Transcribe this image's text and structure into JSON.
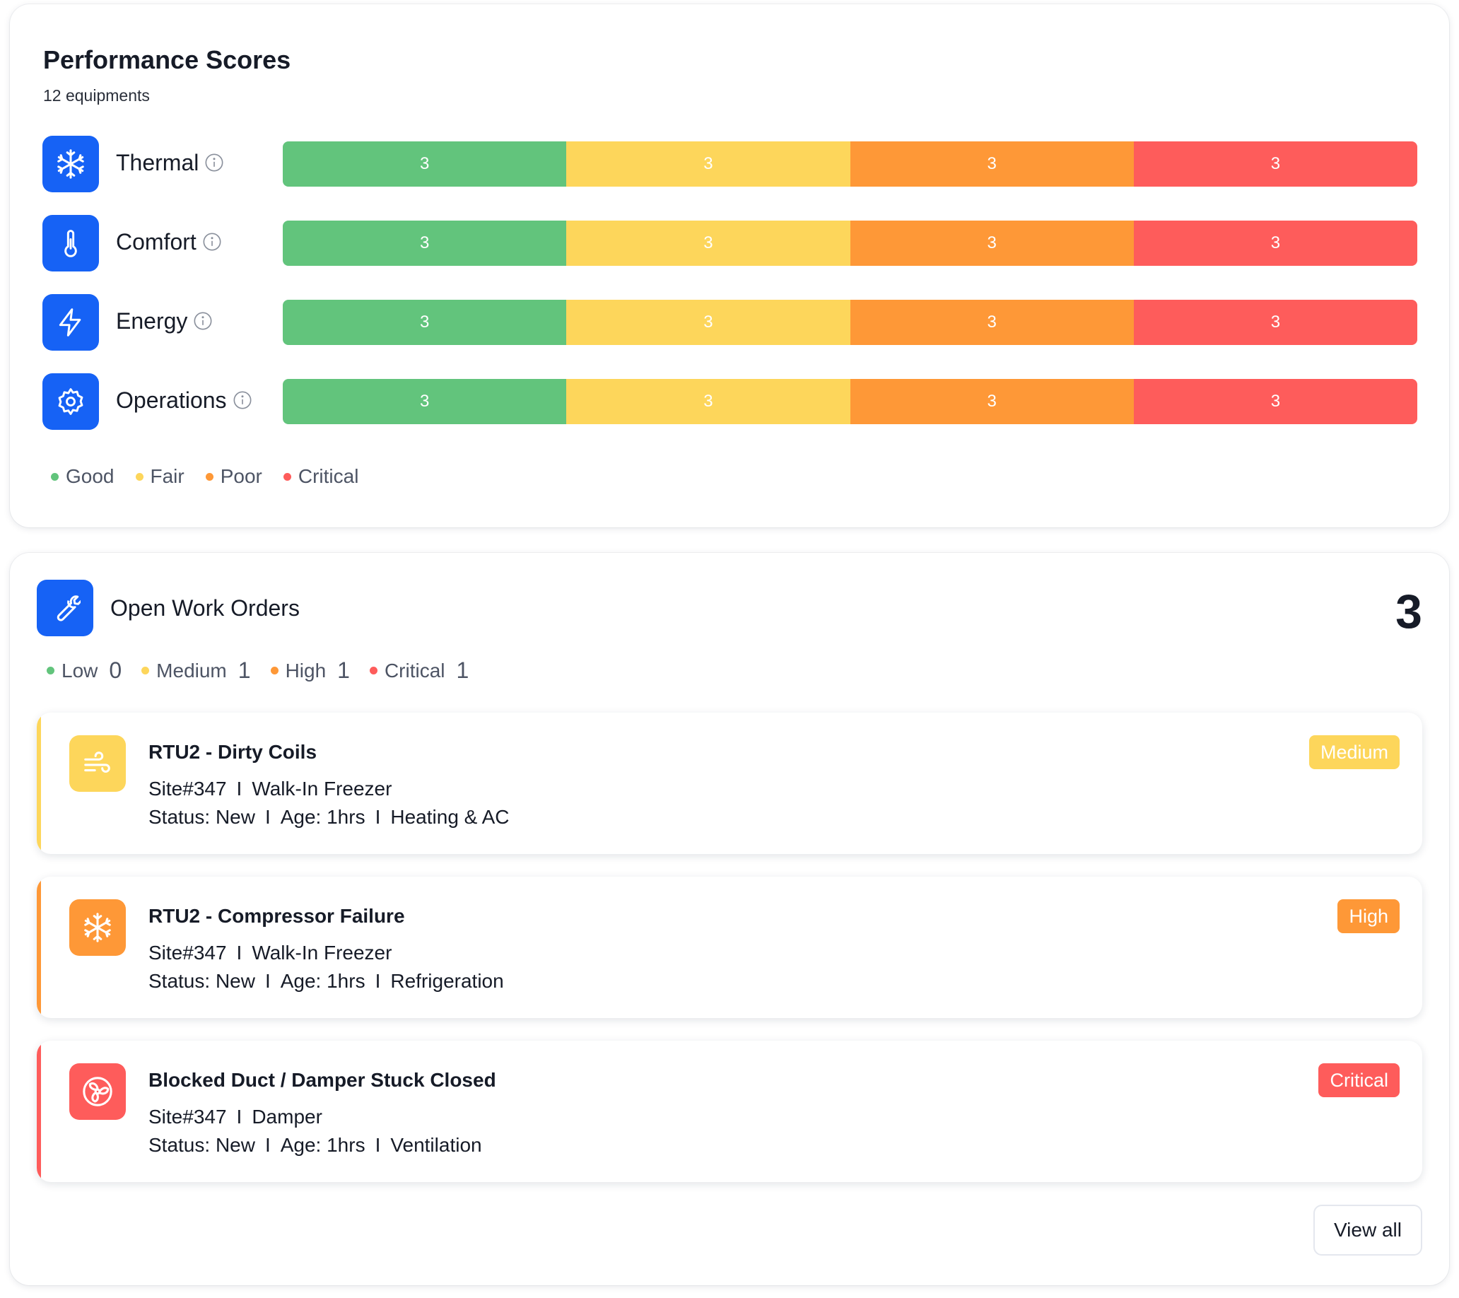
{
  "performance": {
    "title": "Performance Scores",
    "subtitle": "12 equipments",
    "rows": [
      {
        "label": "Thermal",
        "icon": "snowflake-icon",
        "good": "3",
        "fair": "3",
        "poor": "3",
        "critical": "3"
      },
      {
        "label": "Comfort",
        "icon": "thermometer-icon",
        "good": "3",
        "fair": "3",
        "poor": "3",
        "critical": "3"
      },
      {
        "label": "Energy",
        "icon": "lightning-icon",
        "good": "3",
        "fair": "3",
        "poor": "3",
        "critical": "3"
      },
      {
        "label": "Operations",
        "icon": "gear-icon",
        "good": "3",
        "fair": "3",
        "poor": "3",
        "critical": "3"
      }
    ],
    "legend": {
      "good": "Good",
      "fair": "Fair",
      "poor": "Poor",
      "critical": "Critical"
    }
  },
  "colors": {
    "accent": "#1662f5",
    "good": "#62c47c",
    "fair": "#fdd65b",
    "poor": "#fe9837",
    "critical": "#fe5c5b"
  },
  "work_orders": {
    "title": "Open Work Orders",
    "total": "3",
    "counts": [
      {
        "label": "Low",
        "value": "0"
      },
      {
        "label": "Medium",
        "value": "1"
      },
      {
        "label": "High",
        "value": "1"
      },
      {
        "label": "Critical",
        "value": "1"
      }
    ],
    "orders": [
      {
        "title": "RTU2 - Dirty Coils",
        "icon": "wind-icon",
        "site": "Site#347",
        "location": "Walk-In Freezer",
        "status": "Status: New",
        "age": "Age: 1hrs",
        "category": "Heating & AC",
        "priority": "Medium",
        "separator": "I"
      },
      {
        "title": "RTU2 - Compressor Failure",
        "icon": "snowflake-icon",
        "site": "Site#347",
        "location": "Walk-In Freezer",
        "status": "Status: New",
        "age": "Age: 1hrs",
        "category": "Refrigeration",
        "priority": "High",
        "separator": "I"
      },
      {
        "title": "Blocked Duct / Damper Stuck Closed",
        "icon": "fan-icon",
        "site": "Site#347",
        "location": "Damper",
        "status": "Status: New",
        "age": "Age: 1hrs",
        "category": "Ventilation",
        "priority": "Critical",
        "separator": "I"
      }
    ],
    "view_all_label": "View all"
  }
}
